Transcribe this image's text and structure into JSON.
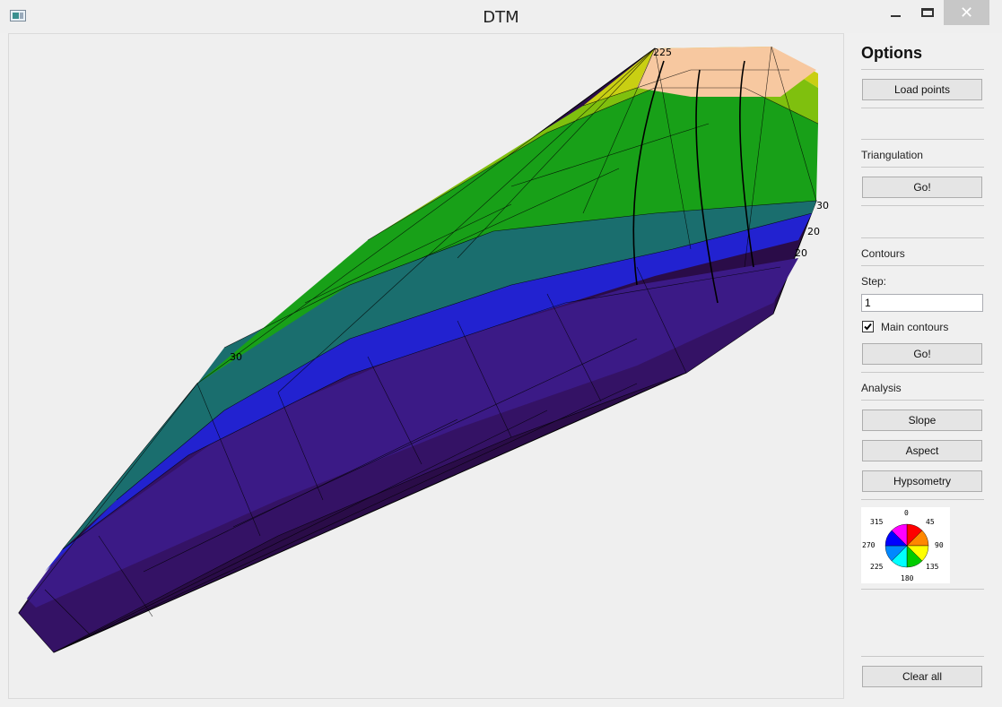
{
  "window": {
    "title": "DTM",
    "close_glyph": "✕"
  },
  "panel": {
    "header": "Options",
    "load_points": "Load points",
    "triangulation_label": "Triangulation",
    "triangulation_go": "Go!",
    "contours_label": "Contours",
    "step_label": "Step:",
    "step_value": "1",
    "main_contours_label": "Main contours",
    "main_contours_checked": true,
    "contours_go": "Go!",
    "analysis_label": "Analysis",
    "slope": "Slope",
    "aspect": "Aspect",
    "hypsometry": "Hypsometry",
    "clear_all": "Clear all"
  },
  "aspect_legend": {
    "labels": {
      "n": "0",
      "ne": "45",
      "e": "90",
      "se": "135",
      "s": "180",
      "sw": "225",
      "w": "270",
      "nw": "315"
    },
    "colors": [
      "#ff0000",
      "#ff8800",
      "#ffff00",
      "#00cc00",
      "#00ffff",
      "#0088ff",
      "#0000ff",
      "#ff00ff"
    ]
  },
  "canvas_labels": {
    "top_label": "225",
    "right_label_1": "30",
    "right_label_2": "20",
    "right_label_3": "20",
    "left_label": "30"
  },
  "terrain_colors": [
    "#2a0c48",
    "#341265",
    "#3b1a86",
    "#2222d0",
    "#1a6e6e",
    "#18a018",
    "#7fc00e",
    "#c9cf13",
    "#f7c8a0"
  ]
}
